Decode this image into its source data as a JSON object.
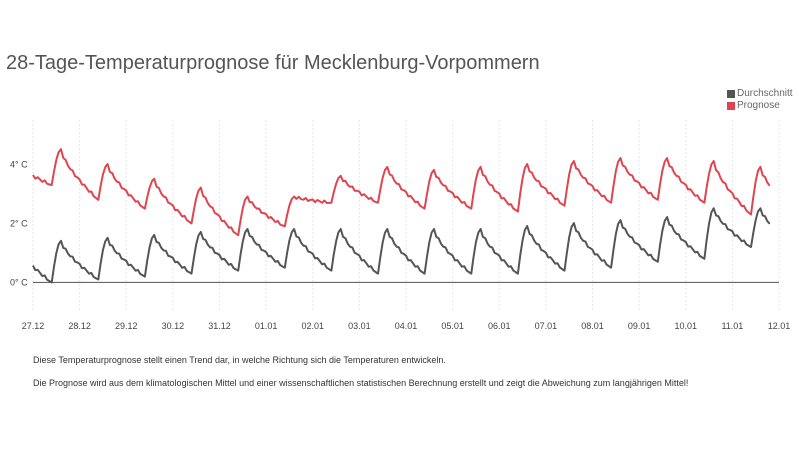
{
  "title": "28-Tage-Temperaturprognose für Mecklenburg-Vorpommern",
  "legend": [
    {
      "label": "Durchschnitt",
      "color": "#555555"
    },
    {
      "label": "Prognose",
      "color": "#e0454f"
    }
  ],
  "notes": [
    "Diese Temperaturprognose stellt einen Trend dar, in welche Richtung sich die Temperaturen entwickeln.",
    "Die Prognose wird aus dem klimatologischen Mittel und einer wissenschaftlichen statistischen Berechnung erstellt und zeigt die Abweichung zum langjährigen Mittel!"
  ],
  "chart_data": {
    "type": "line",
    "title": "28-Tage-Temperaturprognose für Mecklenburg-Vorpommern",
    "x_ticks": [
      "27.12",
      "28.12",
      "29.12",
      "30.12",
      "31.12",
      "01.01",
      "02.01",
      "03.01",
      "04.01",
      "05.01",
      "06.01",
      "07.01",
      "08.01",
      "09.01",
      "10.01",
      "11.01",
      "12.01"
    ],
    "y_ticks": [
      {
        "value": 0,
        "label": "0° C"
      },
      {
        "value": 2,
        "label": "2° C"
      },
      {
        "value": 4,
        "label": "4° C"
      }
    ],
    "ylim": [
      -1,
      5.5
    ],
    "grid": "vertical",
    "legend_position": "top-right",
    "series": [
      {
        "name": "Prognose",
        "color": "#e0454f",
        "daily": [
          {
            "min": 2.9,
            "max": 4.1
          },
          {
            "min": 3.3,
            "max": 4.5
          },
          {
            "min": 2.8,
            "max": 4.0
          },
          {
            "min": 2.5,
            "max": 3.5
          },
          {
            "min": 2.0,
            "max": 3.2
          },
          {
            "min": 1.6,
            "max": 2.9
          },
          {
            "min": 1.9,
            "max": 2.9
          },
          {
            "min": 2.7,
            "max": 3.6
          },
          {
            "min": 2.7,
            "max": 3.9
          },
          {
            "min": 2.5,
            "max": 3.8
          },
          {
            "min": 2.5,
            "max": 3.9
          },
          {
            "min": 2.4,
            "max": 4.0
          },
          {
            "min": 2.6,
            "max": 4.1
          },
          {
            "min": 2.7,
            "max": 4.2
          },
          {
            "min": 2.8,
            "max": 4.2
          },
          {
            "min": 2.7,
            "max": 4.1
          },
          {
            "min": 2.3,
            "max": 3.9
          }
        ]
      },
      {
        "name": "Durchschnitt",
        "color": "#555555",
        "daily": [
          {
            "min": 0.0,
            "max": 1.4
          },
          {
            "min": 0.0,
            "max": 1.4
          },
          {
            "min": 0.1,
            "max": 1.5
          },
          {
            "min": 0.2,
            "max": 1.6
          },
          {
            "min": 0.3,
            "max": 1.7
          },
          {
            "min": 0.4,
            "max": 1.8
          },
          {
            "min": 0.5,
            "max": 1.8
          },
          {
            "min": 0.4,
            "max": 1.8
          },
          {
            "min": 0.3,
            "max": 1.8
          },
          {
            "min": 0.3,
            "max": 1.8
          },
          {
            "min": 0.3,
            "max": 1.8
          },
          {
            "min": 0.3,
            "max": 1.9
          },
          {
            "min": 0.4,
            "max": 2.0
          },
          {
            "min": 0.5,
            "max": 2.1
          },
          {
            "min": 0.7,
            "max": 2.2
          },
          {
            "min": 0.8,
            "max": 2.5
          },
          {
            "min": 1.2,
            "max": 2.5
          }
        ]
      }
    ]
  }
}
